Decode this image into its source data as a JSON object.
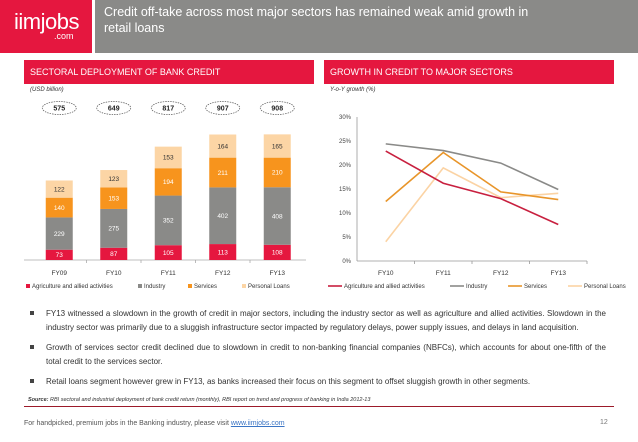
{
  "header": {
    "logo_main": "iimjobs",
    "logo_sub": ".com",
    "title": "Credit off-take across most major sectors has remained weak amid growth in retail loans"
  },
  "left_panel": {
    "title": "SECTORAL DEPLOYMENT OF BANK CREDIT",
    "unit": "(USD billion)"
  },
  "right_panel": {
    "title": "GROWTH IN CREDIT TO MAJOR SECTORS",
    "unit": "Y-o-Y growth (%)"
  },
  "chart_data": [
    {
      "type": "bar",
      "stacked": true,
      "title": "SECTORAL DEPLOYMENT OF BANK CREDIT",
      "ylabel": "(USD billion)",
      "categories": [
        "FY09",
        "FY10",
        "FY11",
        "FY12",
        "FY13"
      ],
      "totals": [
        575,
        649,
        817,
        907,
        908
      ],
      "series": [
        {
          "name": "Agriculture and allied activities",
          "color": "#e5173f",
          "values": [
            73,
            87,
            105,
            113,
            108
          ]
        },
        {
          "name": "Industry",
          "color": "#8a8a88",
          "values": [
            229,
            275,
            352,
            402,
            408
          ]
        },
        {
          "name": "Services",
          "color": "#f7941d",
          "values": [
            140,
            153,
            194,
            211,
            210
          ]
        },
        {
          "name": "Personal Loans",
          "color": "#fcd5a5",
          "values": [
            122,
            123,
            153,
            164,
            165
          ]
        }
      ],
      "legend": "bottom"
    },
    {
      "type": "line",
      "title": "GROWTH IN CREDIT TO MAJOR SECTORS",
      "ylabel": "Y-o-Y growth (%)",
      "categories": [
        "FY10",
        "FY11",
        "FY12",
        "FY13"
      ],
      "ylim": [
        0,
        30
      ],
      "yticks": [
        "0%",
        "5%",
        "10%",
        "15%",
        "20%",
        "25%",
        "30%"
      ],
      "series": [
        {
          "name": "Agriculture and allied activities",
          "color": "#c8203f",
          "values": [
            22.9,
            16.2,
            13.0,
            7.6
          ]
        },
        {
          "name": "Industry",
          "color": "#8a8a88",
          "values": [
            24.4,
            23.0,
            20.4,
            14.9
          ]
        },
        {
          "name": "Services",
          "color": "#e8952a",
          "values": [
            12.4,
            22.6,
            14.4,
            12.8
          ]
        },
        {
          "name": "Personal Loans",
          "color": "#fbd3a4",
          "values": [
            4.0,
            19.4,
            13.2,
            14.1
          ]
        }
      ],
      "legend": "bottom"
    }
  ],
  "bullets": [
    "FY13 witnessed a slowdown in the growth of credit in major sectors, including the industry sector as well as agriculture and allied activities. Slowdown in the industry sector was primarily due to a sluggish infrastructure sector impacted by regulatory delays, power supply issues, and delays in land acquisition.",
    "Growth of services sector credit declined due to slowdown in credit to non-banking financial companies (NBFCs), which accounts for about one-fifth of the total credit to the services sector.",
    "Retail loans segment however grew in FY13, as banks increased their focus on this segment to offset sluggish growth in other segments."
  ],
  "source": {
    "label": "Source:",
    "text": "RBI sectoral and industrial deployment of bank credit return (monthly), RBI report on trend and progress of banking in India 2012-13"
  },
  "footer": {
    "text": "For handpicked, premium jobs in the Banking industry, please visit ",
    "link": "www.iimjobs.com",
    "page": "12"
  }
}
